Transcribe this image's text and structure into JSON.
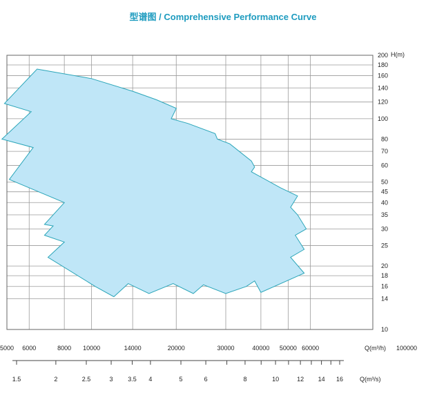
{
  "title": "型谱图 / Comprehensive Performance Curve",
  "colors": {
    "title": "#1d9bbf",
    "region_fill": "#bfe6f7",
    "region_stroke": "#2aa5b8",
    "grid": "#9a9a9a"
  },
  "chart_data": {
    "type": "area",
    "x_scale": "log",
    "y_scale": "log",
    "xlim": [
      5000,
      100000
    ],
    "ylim": [
      10,
      200
    ],
    "ylabel": "H(m)",
    "xlabel": "Q(m³/h)",
    "x2label": "Q(m³/s)",
    "x_ticks": [
      5000,
      6000,
      8000,
      10000,
      14000,
      20000,
      30000,
      40000,
      50000,
      60000,
      100000
    ],
    "x_tick_labels": [
      "5000",
      "6000",
      "8000",
      "10000",
      "14000",
      "20000",
      "30000",
      "40000",
      "50000",
      "60000",
      "100000"
    ],
    "y_ticks": [
      10,
      14,
      16,
      18,
      20,
      25,
      30,
      35,
      40,
      45,
      50,
      60,
      70,
      80,
      100,
      120,
      140,
      160,
      180,
      200
    ],
    "y_tick_labels": [
      "10",
      "14",
      "16",
      "18",
      "20",
      "25",
      "30",
      "35",
      "40",
      "45",
      "50",
      "60",
      "70",
      "80",
      "100",
      "120",
      "140",
      "160",
      "180",
      "200"
    ],
    "x2_ticks": [
      1.5,
      2,
      2.5,
      3,
      3.5,
      4,
      5,
      6,
      8,
      10,
      12,
      14,
      16
    ],
    "x2_tick_labels": [
      "1.5",
      "2",
      "2.5",
      "3",
      "3.5",
      "4",
      "5",
      "6",
      "8",
      "10",
      "12",
      "14",
      "16"
    ],
    "x2_minor_ticks": [
      1.5,
      2,
      2.5,
      3,
      3.5,
      4,
      5,
      6,
      7,
      8,
      9,
      10,
      11,
      12,
      13,
      14,
      15,
      16
    ],
    "region": [
      [
        6400,
        172
      ],
      [
        10000,
        155
      ],
      [
        14000,
        135
      ],
      [
        17000,
        123
      ],
      [
        20000,
        112
      ],
      [
        19200,
        100
      ],
      [
        22000,
        95
      ],
      [
        27500,
        85
      ],
      [
        28000,
        80
      ],
      [
        31000,
        76
      ],
      [
        37000,
        63
      ],
      [
        38000,
        59
      ],
      [
        37000,
        56
      ],
      [
        47000,
        47
      ],
      [
        54000,
        43
      ],
      [
        51000,
        38
      ],
      [
        54000,
        35
      ],
      [
        58000,
        30
      ],
      [
        53000,
        28
      ],
      [
        57000,
        24
      ],
      [
        51000,
        22
      ],
      [
        57000,
        18.5
      ],
      [
        40000,
        15
      ],
      [
        38000,
        17
      ],
      [
        35500,
        16
      ],
      [
        30000,
        14.8
      ],
      [
        25000,
        16.3
      ],
      [
        23000,
        14.8
      ],
      [
        19500,
        16.5
      ],
      [
        16000,
        14.8
      ],
      [
        13500,
        16.5
      ],
      [
        12000,
        14.3
      ],
      [
        10300,
        16
      ],
      [
        7000,
        22
      ],
      [
        8000,
        26
      ],
      [
        6800,
        28
      ],
      [
        7300,
        31
      ],
      [
        6800,
        31.5
      ],
      [
        8000,
        40
      ],
      [
        5100,
        51.5
      ],
      [
        6200,
        73
      ],
      [
        4800,
        80
      ],
      [
        6100,
        108
      ],
      [
        4900,
        118
      ]
    ]
  }
}
